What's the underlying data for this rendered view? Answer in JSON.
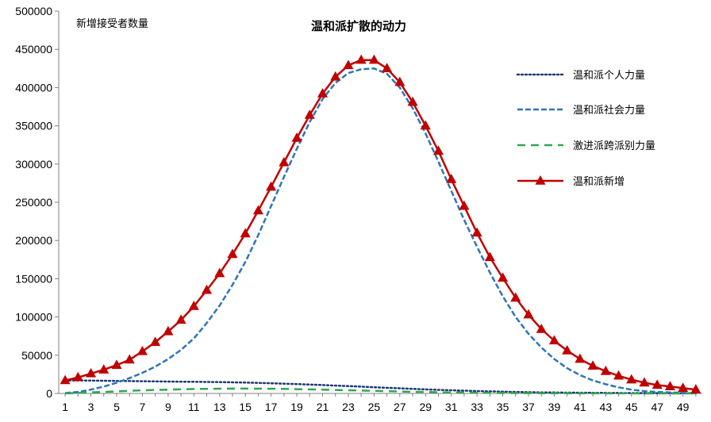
{
  "chart_data": {
    "type": "line",
    "title": "温和派扩散的动力",
    "ylabel": "新增接受者数量",
    "xlabel": "",
    "ylim": [
      0,
      500000
    ],
    "y_ticks": [
      "0",
      "50000",
      "100000",
      "150000",
      "200000",
      "250000",
      "300000",
      "350000",
      "400000",
      "450000",
      "500000"
    ],
    "x_ticks": [
      "1",
      "3",
      "5",
      "7",
      "9",
      "11",
      "13",
      "15",
      "17",
      "19",
      "21",
      "23",
      "25",
      "27",
      "29",
      "31",
      "33",
      "35",
      "37",
      "39",
      "41",
      "43",
      "45",
      "47",
      "49"
    ],
    "x": [
      1,
      2,
      3,
      4,
      5,
      6,
      7,
      8,
      9,
      10,
      11,
      12,
      13,
      14,
      15,
      16,
      17,
      18,
      19,
      20,
      21,
      22,
      23,
      24,
      25,
      26,
      27,
      28,
      29,
      30,
      31,
      32,
      33,
      34,
      35,
      36,
      37,
      38,
      39,
      40,
      41,
      42,
      43,
      44,
      45,
      46,
      47,
      48,
      49,
      50
    ],
    "grid": false,
    "legend_position": "right",
    "series": [
      {
        "name": "温和派个人力量",
        "color": "#1F3A73",
        "dash": "dotted",
        "values": [
          17000,
          17000,
          16800,
          16600,
          16400,
          16200,
          16000,
          15800,
          15600,
          15400,
          15200,
          15000,
          14800,
          14500,
          14200,
          13800,
          13300,
          12800,
          12200,
          11600,
          11000,
          10300,
          9600,
          8900,
          8100,
          7400,
          6700,
          6000,
          5300,
          4700,
          4100,
          3600,
          3100,
          2700,
          2300,
          2000,
          1700,
          1400,
          1200,
          1000,
          900,
          800,
          700,
          600,
          500,
          450,
          400,
          350,
          300,
          250
        ]
      },
      {
        "name": "温和派社会力量",
        "color": "#2E75B6",
        "dash": "dashed",
        "values": [
          500,
          2000,
          5000,
          9000,
          14000,
          20000,
          27000,
          35000,
          45000,
          57000,
          72000,
          92000,
          115000,
          142000,
          172000,
          207000,
          245000,
          283000,
          320000,
          355000,
          385000,
          406000,
          419000,
          424000,
          425000,
          418000,
          400000,
          373000,
          340000,
          303000,
          265000,
          227000,
          192000,
          158000,
          127000,
          100000,
          78000,
          60000,
          45000,
          33000,
          24000,
          17000,
          12000,
          8000,
          5000,
          3000,
          2000,
          1200,
          700,
          400
        ]
      },
      {
        "name": "激进派跨派别力量",
        "color": "#2FA84F",
        "dash": "longdash",
        "values": [
          0,
          700,
          1300,
          2000,
          2700,
          3400,
          4000,
          4600,
          5000,
          5500,
          5800,
          6000,
          6200,
          6300,
          6300,
          6200,
          6100,
          5900,
          5600,
          5300,
          5000,
          4600,
          4200,
          3800,
          3400,
          3000,
          2600,
          2200,
          1900,
          1600,
          1300,
          1100,
          900,
          700,
          600,
          500,
          400,
          300,
          250,
          200,
          150,
          120,
          100,
          80,
          60,
          50,
          40,
          30,
          20,
          10
        ]
      },
      {
        "name": "温和派新增",
        "color": "#C00000",
        "dash": "solid",
        "marker": "triangle",
        "values": [
          17000,
          21000,
          26000,
          31000,
          37000,
          44000,
          55000,
          67000,
          81000,
          96000,
          114000,
          135000,
          157000,
          182000,
          209000,
          239000,
          270000,
          302000,
          334000,
          364000,
          392000,
          414000,
          429000,
          436000,
          436000,
          425000,
          407000,
          381000,
          350000,
          317000,
          280000,
          245000,
          210000,
          178000,
          151000,
          125000,
          103000,
          84000,
          69000,
          56000,
          45000,
          36000,
          29000,
          23000,
          18000,
          14000,
          11000,
          9000,
          7000,
          5000
        ]
      }
    ]
  }
}
